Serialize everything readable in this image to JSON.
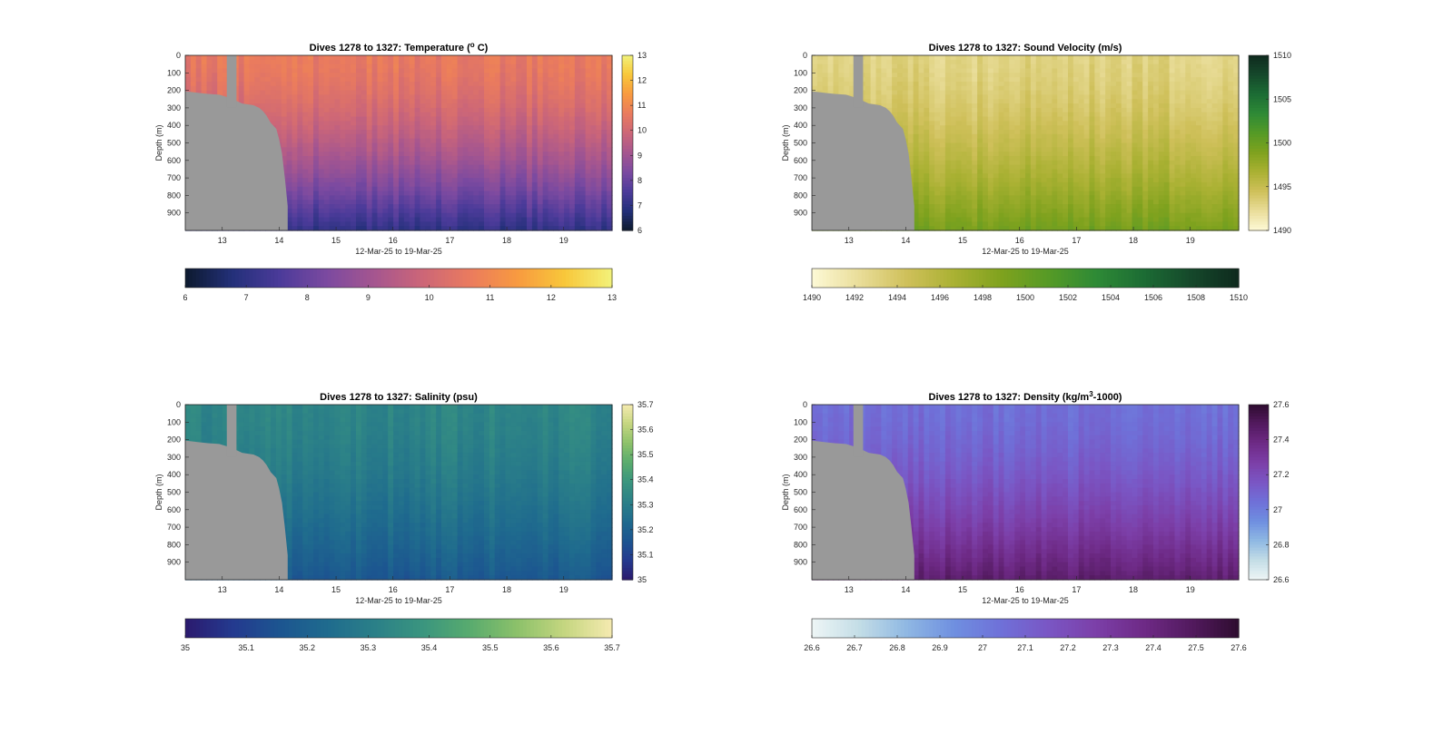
{
  "chart_data": [
    {
      "type": "heatmap",
      "title": "Dives 1278 to 1327: Temperature (",
      "title_sup": "o",
      "title_end": " C)",
      "xlabel": "12-Mar-25 to 19-Mar-25",
      "ylabel": "Depth (m)",
      "x_ticks": [
        "13",
        "14",
        "15",
        "16",
        "17",
        "18",
        "19"
      ],
      "x_range": [
        12.35,
        19.85
      ],
      "y_ticks": [
        "0",
        "100",
        "200",
        "300",
        "400",
        "500",
        "600",
        "700",
        "800",
        "900"
      ],
      "y_range": [
        0,
        1000
      ],
      "y_reversed": true,
      "colorbar_ticks": [
        "6",
        "7",
        "8",
        "9",
        "10",
        "11",
        "12",
        "13"
      ],
      "clim": [
        6,
        13
      ],
      "colormap": [
        "#0d1a2e",
        "#23307a",
        "#4c3b9a",
        "#7c4aa0",
        "#a6568f",
        "#cc6678",
        "#ea7b5e",
        "#f89a40",
        "#f8c73a",
        "#f2f27a"
      ],
      "surface_value": 10.6,
      "deep_value": 7.0
    },
    {
      "type": "heatmap",
      "title": "Dives 1278 to 1327: Sound Velocity (m/s)",
      "xlabel": "12-Mar-25 to 19-Mar-25",
      "ylabel": "Depth (m)",
      "x_ticks": [
        "13",
        "14",
        "15",
        "16",
        "17",
        "18",
        "19"
      ],
      "x_range": [
        12.35,
        19.85
      ],
      "y_ticks": [
        "0",
        "100",
        "200",
        "300",
        "400",
        "500",
        "600",
        "700",
        "800",
        "900"
      ],
      "y_range": [
        0,
        1000
      ],
      "y_reversed": true,
      "colorbar_ticks_right": [
        "1490",
        "1495",
        "1500",
        "1505",
        "1510"
      ],
      "colorbar_ticks": [
        "1490",
        "1492",
        "1494",
        "1496",
        "1498",
        "1500",
        "1502",
        "1504",
        "1506",
        "1508",
        "1510"
      ],
      "clim": [
        1490,
        1510
      ],
      "colormap": [
        "#fdf9d6",
        "#e9dd99",
        "#cfc05a",
        "#aab133",
        "#7fa21e",
        "#559a26",
        "#2e8a36",
        "#1c6c34",
        "#15482b",
        "#0e2a1e"
      ],
      "surface_value": 1493.0,
      "deep_value": 1499.5
    },
    {
      "type": "heatmap",
      "title": "Dives 1278 to 1327: Salinity (psu)",
      "xlabel": "12-Mar-25 to 19-Mar-25",
      "ylabel": "Depth (m)",
      "x_ticks": [
        "13",
        "14",
        "15",
        "16",
        "17",
        "18",
        "19"
      ],
      "x_range": [
        12.35,
        19.85
      ],
      "y_ticks": [
        "0",
        "100",
        "200",
        "300",
        "400",
        "500",
        "600",
        "700",
        "800",
        "900"
      ],
      "y_range": [
        0,
        1000
      ],
      "y_reversed": true,
      "colorbar_ticks_right": [
        "35",
        "35.1",
        "35.2",
        "35.3",
        "35.4",
        "35.5",
        "35.6",
        "35.7"
      ],
      "colorbar_ticks": [
        "35",
        "35.1",
        "35.2",
        "35.3",
        "35.4",
        "35.5",
        "35.6",
        "35.7"
      ],
      "clim": [
        35,
        35.7
      ],
      "colormap": [
        "#2b1a6e",
        "#243a8f",
        "#1c5590",
        "#1f6b8e",
        "#2b8088",
        "#3a957f",
        "#58ab6e",
        "#8cc16a",
        "#c5d680",
        "#f5eab0"
      ],
      "surface_value": 35.33,
      "deep_value": 35.17
    },
    {
      "type": "heatmap",
      "title": "Dives 1278 to 1327: Density (kg/m",
      "title_sup": "3",
      "title_end": "-1000)",
      "xlabel": "12-Mar-25 to 19-Mar-25",
      "ylabel": "Depth (m)",
      "x_ticks": [
        "13",
        "14",
        "15",
        "16",
        "17",
        "18",
        "19"
      ],
      "x_range": [
        12.35,
        19.85
      ],
      "y_ticks": [
        "0",
        "100",
        "200",
        "300",
        "400",
        "500",
        "600",
        "700",
        "800",
        "900"
      ],
      "y_range": [
        0,
        1000
      ],
      "y_reversed": true,
      "colorbar_ticks_right": [
        "26.6",
        "26.8",
        "27",
        "27.2",
        "27.4",
        "27.6"
      ],
      "colorbar_ticks": [
        "26.6",
        "26.7",
        "26.8",
        "26.9",
        "27",
        "27.1",
        "27.2",
        "27.3",
        "27.4",
        "27.5",
        "27.6"
      ],
      "clim": [
        26.6,
        27.6
      ],
      "colormap": [
        "#eef6f6",
        "#c3dde6",
        "#8fb8e3",
        "#6f8fe0",
        "#6f70d8",
        "#7a56c4",
        "#7c3fa8",
        "#6e2a86",
        "#531a5f",
        "#2e0c2f"
      ],
      "surface_value": 27.05,
      "deep_value": 27.45
    }
  ],
  "colors": {
    "land": "#999999",
    "background": "#ffffff",
    "axes": "#262626"
  }
}
